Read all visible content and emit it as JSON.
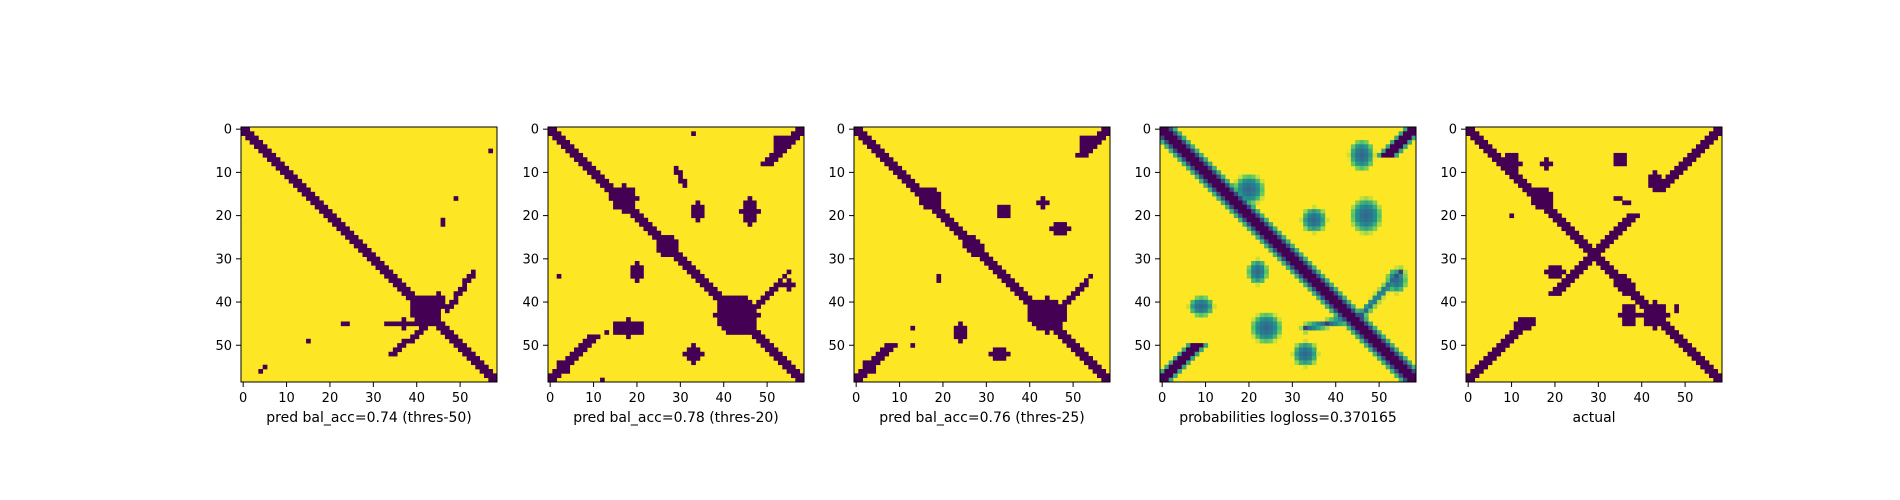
{
  "colors": {
    "low": "#440154",
    "mid_low": "#31688e",
    "mid": "#21918c",
    "mid_high": "#5ec962",
    "high": "#fde725"
  },
  "chart_data": [
    {
      "type": "heatmap",
      "variant": "binary",
      "xlabel": "pred bal_acc=0.74 (thres-50)",
      "xticks": [
        0,
        10,
        20,
        30,
        40,
        50
      ],
      "yticks": [
        0,
        10,
        20,
        30,
        40,
        50
      ],
      "xlim": [
        0,
        58
      ],
      "ylim": [
        0,
        58
      ],
      "size": 59,
      "diag_halfwidth": 1.3,
      "anti_segments": [],
      "blobs": [
        {
          "r": 42,
          "c": 42,
          "rr": 3.5,
          "rc": 3.5
        },
        {
          "r": 45,
          "c": 37,
          "rr": 1,
          "rc": 4
        },
        {
          "r": 40,
          "c": 45,
          "rr": 2,
          "rc": 1.5
        }
      ],
      "lines": [
        {
          "r0": 33,
          "c0": 53,
          "r1": 42,
          "c1": 47
        },
        {
          "r0": 52,
          "c0": 34,
          "r1": 46,
          "c1": 42
        }
      ],
      "dots": [
        [
          5,
          57
        ],
        [
          16,
          49
        ],
        [
          21,
          46
        ],
        [
          22,
          46
        ],
        [
          45,
          23
        ],
        [
          45,
          24
        ],
        [
          49,
          15
        ],
        [
          55,
          5
        ],
        [
          56,
          4
        ]
      ]
    },
    {
      "type": "heatmap",
      "variant": "binary",
      "xlabel": "pred bal_acc=0.78 (thres-20)",
      "xticks": [
        0,
        10,
        20,
        30,
        40,
        50
      ],
      "yticks": [
        0,
        10,
        20,
        30,
        40,
        50
      ],
      "xlim": [
        0,
        58
      ],
      "ylim": [
        0,
        58
      ],
      "size": 59,
      "diag_halfwidth": 1.8,
      "anti_segments": [
        [
          0,
          8
        ],
        [
          48,
          58
        ]
      ],
      "blobs": [
        {
          "r": 16,
          "c": 17,
          "rr": 3,
          "rc": 3
        },
        {
          "r": 27,
          "c": 27,
          "rr": 2.5,
          "rc": 2.5
        },
        {
          "r": 43,
          "c": 43,
          "rr": 4.5,
          "rc": 5
        },
        {
          "r": 19,
          "c": 34,
          "rr": 2,
          "rc": 1.5
        },
        {
          "r": 19,
          "c": 46,
          "rr": 3,
          "rc": 2
        },
        {
          "r": 33,
          "c": 20,
          "rr": 2,
          "rc": 1.5
        },
        {
          "r": 46,
          "c": 18,
          "rr": 2,
          "rc": 3.5
        },
        {
          "r": 52,
          "c": 33,
          "rr": 2,
          "rc": 2
        },
        {
          "r": 3,
          "c": 53,
          "rr": 1.5,
          "rc": 1.5
        },
        {
          "r": 55,
          "c": 3,
          "rr": 1.5,
          "rc": 1.5
        },
        {
          "r": 36,
          "c": 55,
          "rr": 1.5,
          "rc": 1
        }
      ],
      "lines": [
        {
          "r0": 33,
          "c0": 55,
          "r1": 44,
          "c1": 45
        },
        {
          "r0": 9,
          "c0": 29,
          "r1": 13,
          "c1": 31
        }
      ],
      "dots": [
        [
          1,
          33
        ],
        [
          34,
          2
        ],
        [
          47,
          13
        ],
        [
          58,
          12
        ]
      ]
    },
    {
      "type": "heatmap",
      "variant": "binary",
      "xlabel": "pred bal_acc=0.76 (thres-25)",
      "xticks": [
        0,
        10,
        20,
        30,
        40,
        50
      ],
      "yticks": [
        0,
        10,
        20,
        30,
        40,
        50
      ],
      "xlim": [
        0,
        58
      ],
      "ylim": [
        0,
        58
      ],
      "size": 59,
      "diag_halfwidth": 1.6,
      "anti_segments": [
        [
          0,
          6
        ],
        [
          50,
          58
        ]
      ],
      "blobs": [
        {
          "r": 16,
          "c": 17,
          "rr": 2.5,
          "rc": 2.5
        },
        {
          "r": 27,
          "c": 27,
          "rr": 2,
          "rc": 2
        },
        {
          "r": 43,
          "c": 44,
          "rr": 4,
          "rc": 4.5
        },
        {
          "r": 19,
          "c": 34,
          "rr": 1.5,
          "rc": 1.5
        },
        {
          "r": 23,
          "c": 47,
          "rr": 1.5,
          "rc": 2
        },
        {
          "r": 47,
          "c": 24,
          "rr": 2,
          "rc": 1.5
        },
        {
          "r": 52,
          "c": 33,
          "rr": 1.5,
          "rc": 2
        },
        {
          "r": 3,
          "c": 53,
          "rr": 1.5,
          "rc": 1.5
        },
        {
          "r": 55,
          "c": 3,
          "rr": 1.5,
          "rc": 1.5
        },
        {
          "r": 17,
          "c": 43,
          "rr": 1,
          "rc": 1
        }
      ],
      "lines": [
        {
          "r0": 34,
          "c0": 54,
          "r1": 43,
          "c1": 46
        }
      ],
      "dots": [
        [
          34,
          19
        ],
        [
          35,
          19
        ],
        [
          46,
          13
        ],
        [
          50,
          13
        ]
      ]
    },
    {
      "type": "heatmap",
      "variant": "probability",
      "xlabel": "probabilities logloss=0.370165",
      "xticks": [
        0,
        10,
        20,
        30,
        40,
        50
      ],
      "yticks": [
        0,
        10,
        20,
        30,
        40,
        50
      ],
      "xlim": [
        0,
        58
      ],
      "ylim": [
        0,
        58
      ],
      "size": 59,
      "diag_halfwidth": 1.6,
      "anti_segments": [
        [
          0,
          6
        ],
        [
          50,
          58
        ]
      ],
      "blobs": [
        {
          "r": 14,
          "c": 20,
          "rr": 3,
          "rc": 3
        },
        {
          "r": 21,
          "c": 35,
          "rr": 2.5,
          "rc": 2.5
        },
        {
          "r": 20,
          "c": 47,
          "rr": 3.5,
          "rc": 3
        },
        {
          "r": 33,
          "c": 22,
          "rr": 2.5,
          "rc": 2
        },
        {
          "r": 46,
          "c": 24,
          "rr": 3,
          "rc": 3
        },
        {
          "r": 52,
          "c": 33,
          "rr": 2.5,
          "rc": 2.5
        },
        {
          "r": 35,
          "c": 54,
          "rr": 2.5,
          "rc": 2
        },
        {
          "r": 6,
          "c": 46,
          "rr": 3,
          "rc": 2.5
        },
        {
          "r": 41,
          "c": 9,
          "rr": 2,
          "rc": 2.5
        }
      ],
      "lines": [
        {
          "r0": 33,
          "c0": 55,
          "r1": 44,
          "c1": 45
        },
        {
          "r0": 46,
          "c0": 33,
          "r1": 44,
          "c1": 43
        }
      ],
      "dots": []
    },
    {
      "type": "heatmap",
      "variant": "binary",
      "xlabel": "actual",
      "xticks": [
        0,
        10,
        20,
        30,
        40,
        50
      ],
      "yticks": [
        0,
        10,
        20,
        30,
        40,
        50
      ],
      "xlim": [
        0,
        58
      ],
      "ylim": [
        0,
        58
      ],
      "size": 59,
      "diag_halfwidth": 1.4,
      "anti_segments": [
        [
          0,
          14
        ],
        [
          44,
          58
        ],
        [
          20,
          38
        ]
      ],
      "blobs": [
        {
          "r": 8,
          "c": 10,
          "rr": 2.5,
          "rc": 2
        },
        {
          "r": 16,
          "c": 17,
          "rr": 2.5,
          "rc": 2.5
        },
        {
          "r": 36,
          "c": 36,
          "rr": 2,
          "rc": 2
        },
        {
          "r": 43,
          "c": 43,
          "rr": 3,
          "rc": 3
        },
        {
          "r": 43,
          "c": 37,
          "rr": 2.5,
          "rc": 2
        },
        {
          "r": 12,
          "c": 43,
          "rr": 2.5,
          "rc": 1.5
        },
        {
          "r": 7,
          "c": 35,
          "rr": 1.5,
          "rc": 1.5
        },
        {
          "r": 33,
          "c": 20,
          "rr": 1.5,
          "rc": 2
        },
        {
          "r": 45,
          "c": 13,
          "rr": 1.5,
          "rc": 2
        },
        {
          "r": 8,
          "c": 18,
          "rr": 1,
          "rc": 1
        }
      ],
      "lines": [
        {
          "r0": 16,
          "c0": 34,
          "r1": 17,
          "c1": 37
        }
      ],
      "dots": [
        [
          8,
          19
        ],
        [
          20,
          10
        ],
        [
          41,
          48
        ],
        [
          42,
          48
        ]
      ]
    }
  ]
}
